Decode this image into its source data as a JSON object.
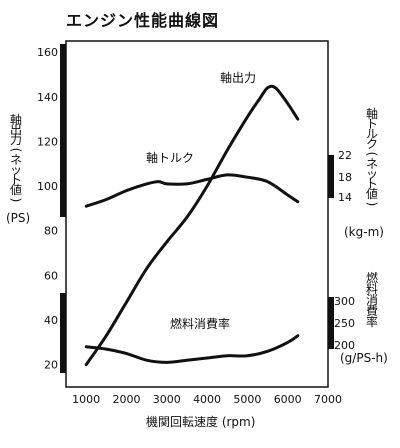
{
  "chart_data": {
    "type": "line",
    "title": "エンジン性能曲線図",
    "xlabel": "機関回転速度 (rpm)",
    "xlim": [
      500,
      7000
    ],
    "x_ticks": [
      "1000",
      "2000",
      "3000",
      "4000",
      "5000",
      "6000",
      "7000"
    ],
    "grid": false,
    "left_axis": {
      "label_lines": [
        "軸",
        "出",
        "力",
        "(",
        "ネ",
        "ッ",
        "ト",
        "値",
        ")"
      ],
      "unit": "(PS)",
      "range": [
        10,
        165
      ],
      "ticks": [
        "20",
        "40",
        "60",
        "80",
        "100",
        "120",
        "140",
        "160"
      ]
    },
    "torque_axis": {
      "label_lines": [
        "軸",
        "ト",
        "ル",
        "ク",
        "(",
        "ネ",
        "ッ",
        "ト",
        "値",
        ")"
      ],
      "unit": "(kg-m)",
      "ticks": [
        "22",
        "18",
        "14"
      ]
    },
    "fuel_axis": {
      "label_lines": [
        "燃",
        "料",
        "消",
        "費",
        "率"
      ],
      "unit": "(g/PS-h)",
      "ticks": [
        "300",
        "250",
        "200"
      ]
    },
    "series": [
      {
        "name": "軸出力",
        "axis": "left",
        "x": [
          1000,
          1500,
          2000,
          2500,
          3000,
          3500,
          4000,
          4500,
          5000,
          5300,
          5500,
          5700,
          6000,
          6250
        ],
        "y": [
          20,
          33,
          48,
          63,
          75,
          86,
          100,
          116,
          131,
          139,
          144,
          144,
          137,
          130
        ]
      },
      {
        "name": "軸トルク",
        "axis": "left_scale",
        "x": [
          1000,
          1500,
          2000,
          2500,
          2800,
          3000,
          3500,
          4000,
          4500,
          5000,
          5500,
          6000,
          6250
        ],
        "y": [
          91,
          94,
          98,
          101,
          102,
          101,
          101,
          103,
          105,
          104,
          102,
          96,
          93
        ]
      },
      {
        "name": "燃料消費率",
        "axis": "left_scale",
        "x": [
          1000,
          1500,
          2000,
          2500,
          3000,
          3500,
          4000,
          4500,
          5000,
          5500,
          6000,
          6250
        ],
        "y": [
          28,
          27,
          25,
          22,
          21,
          22,
          23,
          24,
          24,
          26,
          30,
          33
        ]
      }
    ]
  }
}
